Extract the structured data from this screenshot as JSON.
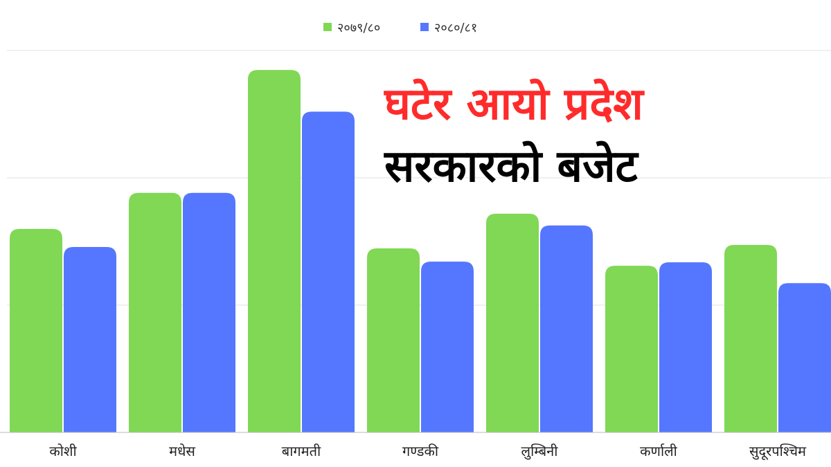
{
  "chart_data": {
    "type": "bar",
    "title_lines": [
      "घटेर आयो प्रदेश",
      "सरकारको बजेट"
    ],
    "categories": [
      "कोशी",
      "मधेस",
      "बागमती",
      "गण्डकी",
      "लुम्बिनी",
      "कर्णाली",
      "सुदूरपश्चिम"
    ],
    "series": [
      {
        "name": "२०७९/८०",
        "color": "#80d855",
        "values": [
          293,
          345,
          522,
          265,
          315,
          240,
          270
        ]
      },
      {
        "name": "२०८०/८१",
        "color": "#5577ff",
        "values": [
          267,
          345,
          462,
          246,
          298,
          245,
          215
        ]
      }
    ],
    "ylim": [
      0,
      550
    ],
    "grid": true,
    "legend_position": "top-center",
    "title_colors": [
      "#ff2b2b",
      "#000000"
    ]
  }
}
